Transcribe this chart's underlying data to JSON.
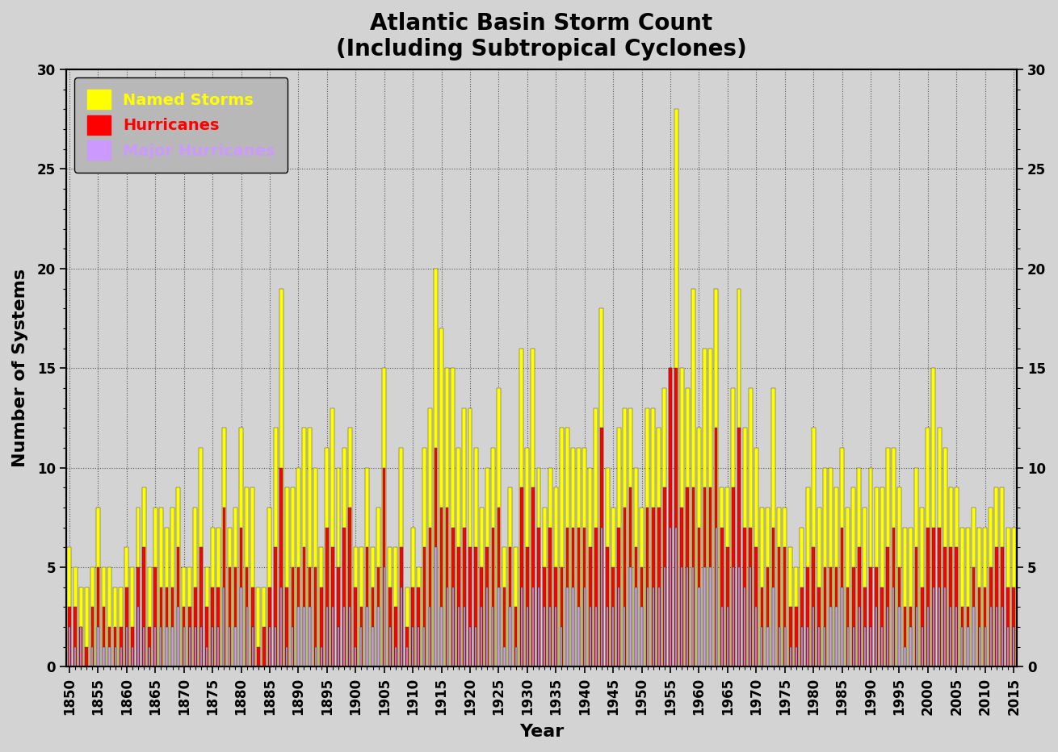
{
  "title_line1": "Atlantic Basin Storm Count",
  "title_line2": "(Including Subtropical Cyclones)",
  "xlabel": "Year",
  "ylabel": "Number of Systems",
  "xlim": [
    1849.5,
    2015.5
  ],
  "ylim": [
    0,
    30
  ],
  "yticks": [
    0,
    5,
    10,
    15,
    20,
    25,
    30
  ],
  "xtick_years": [
    1850,
    1855,
    1860,
    1865,
    1870,
    1875,
    1880,
    1885,
    1890,
    1895,
    1900,
    1905,
    1910,
    1915,
    1920,
    1925,
    1930,
    1935,
    1940,
    1945,
    1950,
    1955,
    1960,
    1965,
    1970,
    1975,
    1980,
    1985,
    1990,
    1995,
    2000,
    2005,
    2010,
    2015
  ],
  "plot_bg_color": "#d3d3d3",
  "fig_bg_color": "#d3d3d3",
  "named_storms_color": "#ffff00",
  "hurricanes_color": "#ff0000",
  "major_color": "#cc99ff",
  "bar_width": 0.7,
  "named_storms": [
    6,
    5,
    4,
    4,
    5,
    8,
    5,
    5,
    4,
    4,
    6,
    5,
    8,
    9,
    5,
    8,
    8,
    7,
    8,
    9,
    5,
    5,
    8,
    11,
    5,
    7,
    7,
    12,
    7,
    8,
    12,
    9,
    9,
    4,
    4,
    8,
    12,
    19,
    9,
    9,
    10,
    12,
    12,
    10,
    6,
    11,
    13,
    10,
    11,
    12,
    6,
    6,
    10,
    6,
    8,
    15,
    6,
    6,
    11,
    4,
    7,
    5,
    11,
    13,
    20,
    17,
    15,
    15,
    11,
    13,
    13,
    11,
    8,
    10,
    11,
    14,
    6,
    9,
    6,
    16,
    11,
    16,
    10,
    8,
    10,
    9,
    12,
    12,
    11,
    11,
    11,
    10,
    13,
    18,
    10,
    8,
    12,
    13,
    13,
    10,
    8,
    13,
    13,
    12,
    14,
    15,
    28,
    15,
    14,
    19,
    12,
    16,
    16,
    19,
    9,
    9,
    14,
    19,
    12,
    14,
    11,
    8,
    8,
    14,
    8,
    8,
    6,
    5,
    7,
    9,
    12,
    8,
    10,
    10,
    9,
    11,
    8,
    9,
    10,
    8,
    10,
    9,
    9,
    11,
    11,
    9,
    7,
    7,
    10,
    8,
    12,
    15,
    12,
    11,
    9,
    9,
    7,
    7,
    8,
    7,
    7,
    8,
    9,
    9,
    7,
    7
  ],
  "hurricanes": [
    3,
    3,
    2,
    1,
    3,
    5,
    3,
    2,
    2,
    2,
    4,
    2,
    5,
    6,
    2,
    5,
    4,
    4,
    4,
    6,
    3,
    3,
    4,
    6,
    3,
    4,
    4,
    8,
    5,
    5,
    7,
    5,
    4,
    1,
    2,
    4,
    6,
    10,
    4,
    5,
    5,
    6,
    5,
    5,
    4,
    7,
    6,
    5,
    7,
    8,
    4,
    3,
    6,
    4,
    5,
    10,
    4,
    3,
    6,
    2,
    4,
    4,
    6,
    7,
    11,
    8,
    8,
    7,
    6,
    7,
    6,
    6,
    5,
    6,
    7,
    8,
    4,
    6,
    3,
    9,
    6,
    9,
    7,
    5,
    7,
    5,
    5,
    7,
    7,
    7,
    7,
    6,
    7,
    12,
    6,
    5,
    7,
    8,
    9,
    6,
    5,
    8,
    8,
    8,
    9,
    15,
    15,
    8,
    9,
    9,
    7,
    9,
    9,
    12,
    7,
    6,
    9,
    12,
    7,
    7,
    6,
    4,
    5,
    7,
    6,
    6,
    3,
    3,
    4,
    5,
    6,
    4,
    5,
    5,
    5,
    7,
    4,
    5,
    6,
    4,
    5,
    5,
    4,
    6,
    7,
    5,
    3,
    3,
    6,
    4,
    7,
    7,
    7,
    6,
    6,
    6,
    3,
    3,
    5,
    4,
    4,
    5,
    6,
    6,
    4,
    4
  ],
  "major": [
    2,
    1,
    2,
    0,
    1,
    2,
    1,
    1,
    1,
    1,
    2,
    1,
    3,
    2,
    1,
    2,
    2,
    2,
    2,
    3,
    2,
    2,
    2,
    2,
    1,
    2,
    2,
    4,
    2,
    2,
    4,
    3,
    2,
    0,
    0,
    2,
    2,
    4,
    1,
    2,
    3,
    3,
    3,
    1,
    1,
    3,
    3,
    2,
    3,
    3,
    1,
    2,
    3,
    2,
    3,
    5,
    2,
    1,
    4,
    1,
    2,
    2,
    2,
    3,
    6,
    3,
    4,
    4,
    3,
    3,
    2,
    2,
    3,
    4,
    3,
    4,
    1,
    3,
    1,
    4,
    3,
    4,
    4,
    3,
    3,
    3,
    2,
    4,
    4,
    3,
    4,
    3,
    3,
    7,
    3,
    3,
    4,
    3,
    5,
    4,
    3,
    4,
    4,
    4,
    5,
    7,
    7,
    5,
    5,
    5,
    4,
    5,
    5,
    7,
    3,
    3,
    5,
    5,
    4,
    5,
    3,
    2,
    2,
    4,
    2,
    2,
    1,
    1,
    2,
    2,
    3,
    2,
    2,
    3,
    3,
    4,
    2,
    2,
    3,
    2,
    2,
    3,
    2,
    3,
    4,
    3,
    1,
    2,
    3,
    2,
    3,
    4,
    4,
    4,
    3,
    3,
    2,
    2,
    3,
    2,
    2,
    3,
    3,
    3,
    2,
    2
  ],
  "years_start": 1850,
  "years_end": 2015,
  "legend_labels": [
    "Named Storms",
    "Hurricanes",
    "Major Hurricanes"
  ],
  "legend_colors": [
    "#ffff00",
    "#ff0000",
    "#cc99ff"
  ],
  "title_fontsize": 20,
  "axis_label_fontsize": 16,
  "tick_fontsize": 12,
  "legend_fontsize": 14,
  "grid_color": "#555555",
  "grid_linestyle": ":",
  "grid_linewidth": 0.8
}
